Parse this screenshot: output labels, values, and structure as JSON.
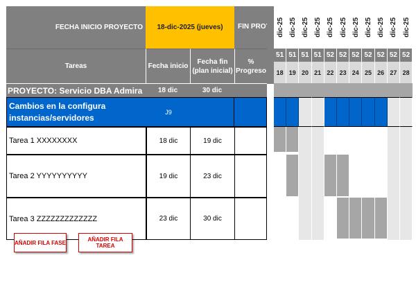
{
  "header": {
    "start_label": "FECHA INICIO PROYECTO",
    "start_value": "18-dic-2025 (jueves)",
    "end_label": "FIN PROY"
  },
  "columns": {
    "tasks": "Tareas",
    "start": "Fecha inicio",
    "end": "Fecha fin (plan inicial)",
    "progress": "% Progreso"
  },
  "project": {
    "title": "PROYECTO: Servicio DBA Admira",
    "start": "18 dic",
    "end": "30 dic"
  },
  "phase": {
    "title": "Cambios en la configura instancias/servidores",
    "cell": "J9"
  },
  "tasks": [
    {
      "name": "Tarea 1 XXXXXXXX",
      "start": "18 dic",
      "end": "19 dic"
    },
    {
      "name": "Tarea 2 YYYYYYYYYY",
      "start": "19 dic",
      "end": "23 dic"
    },
    {
      "name": "Tarea 3 ZZZZZZZZZZZZZ",
      "start": "23 dic",
      "end": "30 dic"
    }
  ],
  "timeline": {
    "days": [
      {
        "month": "dic-25",
        "week": "51",
        "day": "18"
      },
      {
        "month": "dic-25",
        "week": "51",
        "day": "19"
      },
      {
        "month": "dic-25",
        "week": "51",
        "day": "20"
      },
      {
        "month": "dic-25",
        "week": "51",
        "day": "21"
      },
      {
        "month": "dic-25",
        "week": "52",
        "day": "22"
      },
      {
        "month": "dic-25",
        "week": "52",
        "day": "23"
      },
      {
        "month": "dic-25",
        "week": "52",
        "day": "24"
      },
      {
        "month": "dic-25",
        "week": "52",
        "day": "25"
      },
      {
        "month": "dic-25",
        "week": "52",
        "day": "26"
      },
      {
        "month": "dic-25",
        "week": "52",
        "day": "27"
      },
      {
        "month": "dic-25",
        "week": "52",
        "day": "28"
      }
    ],
    "weekend_days": [
      2,
      3,
      9,
      10
    ],
    "phase_bar_days": [
      0,
      1,
      4,
      5,
      6,
      7,
      8
    ],
    "task_bar_days": [
      [
        0,
        1
      ],
      [
        1,
        4,
        5
      ],
      [
        5,
        6,
        7,
        8
      ]
    ]
  },
  "buttons": {
    "add_phase": "AÑADIR FILA FASE",
    "add_task": "AÑADIR FILA TAREA"
  },
  "colors": {
    "header_grey": "#808080",
    "accent_yellow": "#ffc000",
    "phase_blue": "#0066cc",
    "bar_grey": "#a6a6a6",
    "weekend_light": "#e7e7e7"
  }
}
